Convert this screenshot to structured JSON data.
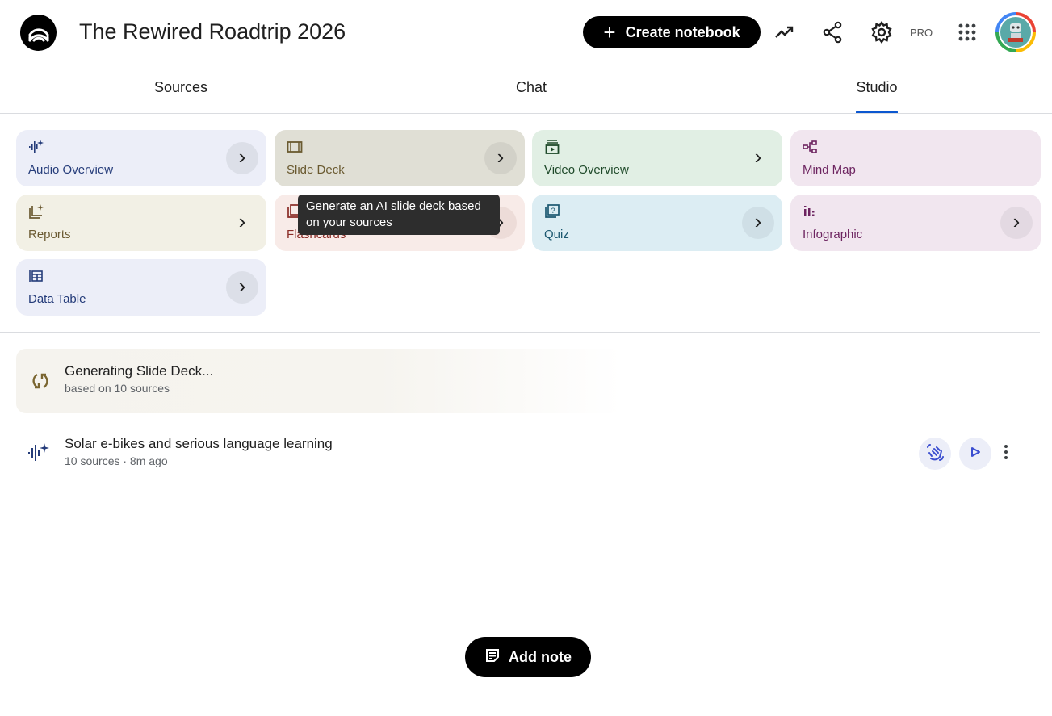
{
  "header": {
    "title": "The Rewired Roadtrip 2026",
    "create_label": "Create notebook",
    "pro_label": "PRO",
    "icons": [
      "logo-icon",
      "analytics-icon",
      "share-icon",
      "settings-icon",
      "apps-grid-icon",
      "avatar"
    ]
  },
  "tabs": [
    {
      "label": "Sources",
      "active": false
    },
    {
      "label": "Chat",
      "active": false
    },
    {
      "label": "Studio",
      "active": true
    }
  ],
  "accent_color": "#0b57d0",
  "studio": {
    "cards": [
      {
        "label": "Audio Overview",
        "icon": "audio-sparkle-icon",
        "bg": "#eceef8",
        "color": "#253c7a"
      },
      {
        "label": "Slide Deck",
        "icon": "slides-icon",
        "bg": "#e0dfd5",
        "color": "#6a5a30"
      },
      {
        "label": "Video Overview",
        "icon": "video-icon",
        "bg": "#e1efe4",
        "color": "#1f4a2a"
      },
      {
        "label": "Mind Map",
        "icon": "mind-map-icon",
        "bg": "#f1e6ef",
        "color": "#6d2460"
      },
      {
        "label": "Reports",
        "icon": "reports-icon",
        "bg": "#f2f0e5",
        "color": "#6b5a32"
      },
      {
        "label": "Flashcards",
        "icon": "flashcards-icon",
        "bg": "#f8ebe8",
        "color": "#8a2b26"
      },
      {
        "label": "Quiz",
        "icon": "quiz-icon",
        "bg": "#dcedf3",
        "color": "#1c5870"
      },
      {
        "label": "Infographic",
        "icon": "infographic-icon",
        "bg": "#f1e6ef",
        "color": "#6d2460"
      },
      {
        "label": "Data Table",
        "icon": "data-table-icon",
        "bg": "#eceef8",
        "color": "#253c7a"
      }
    ],
    "tooltip": "Generate an AI slide deck based on your sources"
  },
  "generating": {
    "title": "Generating Slide Deck...",
    "subtitle": "based on 10 sources"
  },
  "artifact": {
    "title": "Solar e-bikes and serious language learning",
    "meta": "10 sources · 8m ago"
  },
  "add_note_label": "Add note"
}
